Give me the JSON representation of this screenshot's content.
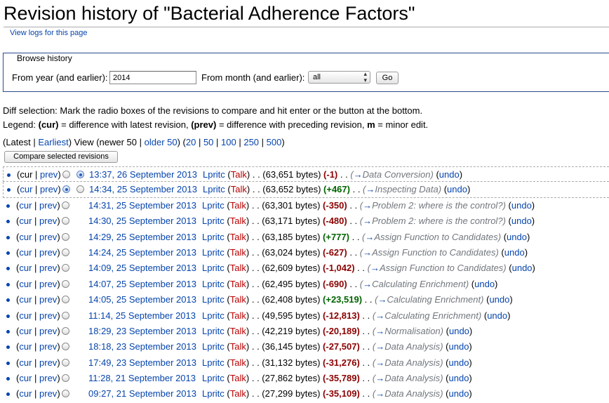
{
  "page": {
    "title": "Revision history of \"Bacterial Adherence Factors\"",
    "logs_link": "View logs for this page"
  },
  "browse": {
    "legend": "Browse history",
    "year_label": "From year (and earlier):",
    "year_value": "2014",
    "month_label": "From month (and earlier):",
    "month_value": "all",
    "go_label": "Go"
  },
  "help": {
    "diff_selection": "Diff selection: Mark the radio boxes of the revisions to compare and hit enter or the button at the bottom.",
    "legend_prefix": "Legend: ",
    "cur_key": "(cur)",
    "cur_desc": " = difference with latest revision, ",
    "prev_key": "(prev)",
    "prev_desc": " = difference with preceding revision, ",
    "minor_key": "m",
    "minor_desc": " = minor edit."
  },
  "nav": {
    "open": "(Latest | ",
    "earliest": "Earliest",
    "view_text": ") View (newer 50 | ",
    "older": "older 50",
    "mid": ") (",
    "limits": [
      "20",
      "50",
      "100",
      "250",
      "500"
    ],
    "close": ")"
  },
  "compare_label": "Compare selected revisions",
  "row_labels": {
    "open": "(",
    "cur": "cur",
    "bar": " | ",
    "prev": "prev",
    "close": ")",
    "talk": "Talk",
    "dots": " . . ",
    "undo": "undo",
    "arrow": "→"
  },
  "revisions": [
    {
      "date": "13:37, 26 September 2013",
      "user": "Lpritc",
      "size": "(63,651 bytes)",
      "diff": "(-1)",
      "sign": "neg",
      "section": "Data Conversion",
      "radio_a": false,
      "radio_b": true,
      "cur_link": false,
      "state": "sel-old"
    },
    {
      "date": "14:34, 25 September 2013",
      "user": "Lpritc",
      "size": "(63,652 bytes)",
      "diff": "(+467)",
      "sign": "pos",
      "section": "Inspecting Data",
      "radio_a": true,
      "radio_b": false,
      "cur_link": true,
      "state": "sel-new"
    },
    {
      "date": "14:31, 25 September 2013",
      "user": "Lpritc",
      "size": "(63,301 bytes)",
      "diff": "(-350)",
      "sign": "neg",
      "section": "Problem 2: where is the control?",
      "radio_a": false,
      "radio_b": null,
      "cur_link": true,
      "state": ""
    },
    {
      "date": "14:30, 25 September 2013",
      "user": "Lpritc",
      "size": "(63,171 bytes)",
      "diff": "(-480)",
      "sign": "neg",
      "section": "Problem 2: where is the control?",
      "radio_a": false,
      "radio_b": null,
      "cur_link": true,
      "state": ""
    },
    {
      "date": "14:29, 25 September 2013",
      "user": "Lpritc",
      "size": "(63,185 bytes)",
      "diff": "(+777)",
      "sign": "pos",
      "section": "Assign Function to Candidates",
      "radio_a": false,
      "radio_b": null,
      "cur_link": true,
      "state": ""
    },
    {
      "date": "14:24, 25 September 2013",
      "user": "Lpritc",
      "size": "(63,024 bytes)",
      "diff": "(-627)",
      "sign": "neg",
      "section": "Assign Function to Candidates",
      "radio_a": false,
      "radio_b": null,
      "cur_link": true,
      "state": ""
    },
    {
      "date": "14:09, 25 September 2013",
      "user": "Lpritc",
      "size": "(62,609 bytes)",
      "diff": "(-1,042)",
      "sign": "neg",
      "section": "Assign Function to Candidates",
      "radio_a": false,
      "radio_b": null,
      "cur_link": true,
      "state": ""
    },
    {
      "date": "14:07, 25 September 2013",
      "user": "Lpritc",
      "size": "(62,495 bytes)",
      "diff": "(-690)",
      "sign": "neg",
      "section": "Calculating Enrichment",
      "radio_a": false,
      "radio_b": null,
      "cur_link": true,
      "state": ""
    },
    {
      "date": "14:05, 25 September 2013",
      "user": "Lpritc",
      "size": "(62,408 bytes)",
      "diff": "(+23,519)",
      "sign": "pos",
      "section": "Calculating Enrichment",
      "radio_a": false,
      "radio_b": null,
      "cur_link": true,
      "state": ""
    },
    {
      "date": "11:14, 25 September 2013",
      "user": "Lpritc",
      "size": "(49,595 bytes)",
      "diff": "(-12,813)",
      "sign": "neg",
      "section": "Calculating Enrichment",
      "radio_a": false,
      "radio_b": null,
      "cur_link": true,
      "state": ""
    },
    {
      "date": "18:29, 23 September 2013",
      "user": "Lpritc",
      "size": "(42,219 bytes)",
      "diff": "(-20,189)",
      "sign": "neg",
      "section": "Normalisation",
      "radio_a": false,
      "radio_b": null,
      "cur_link": true,
      "state": ""
    },
    {
      "date": "18:18, 23 September 2013",
      "user": "Lpritc",
      "size": "(36,145 bytes)",
      "diff": "(-27,507)",
      "sign": "neg",
      "section": "Data Analysis",
      "radio_a": false,
      "radio_b": null,
      "cur_link": true,
      "state": ""
    },
    {
      "date": "17:49, 23 September 2013",
      "user": "Lpritc",
      "size": "(31,132 bytes)",
      "diff": "(-31,276)",
      "sign": "neg",
      "section": "Data Analysis",
      "radio_a": false,
      "radio_b": null,
      "cur_link": true,
      "state": ""
    },
    {
      "date": "11:28, 21 September 2013",
      "user": "Lpritc",
      "size": "(27,862 bytes)",
      "diff": "(-35,789)",
      "sign": "neg",
      "section": "Data Analysis",
      "radio_a": false,
      "radio_b": null,
      "cur_link": true,
      "state": ""
    },
    {
      "date": "09:27, 21 September 2013",
      "user": "Lpritc",
      "size": "(27,299 bytes)",
      "diff": "(-35,109)",
      "sign": "neg",
      "section": "Data Analysis",
      "radio_a": false,
      "radio_b": null,
      "cur_link": true,
      "state": ""
    }
  ]
}
